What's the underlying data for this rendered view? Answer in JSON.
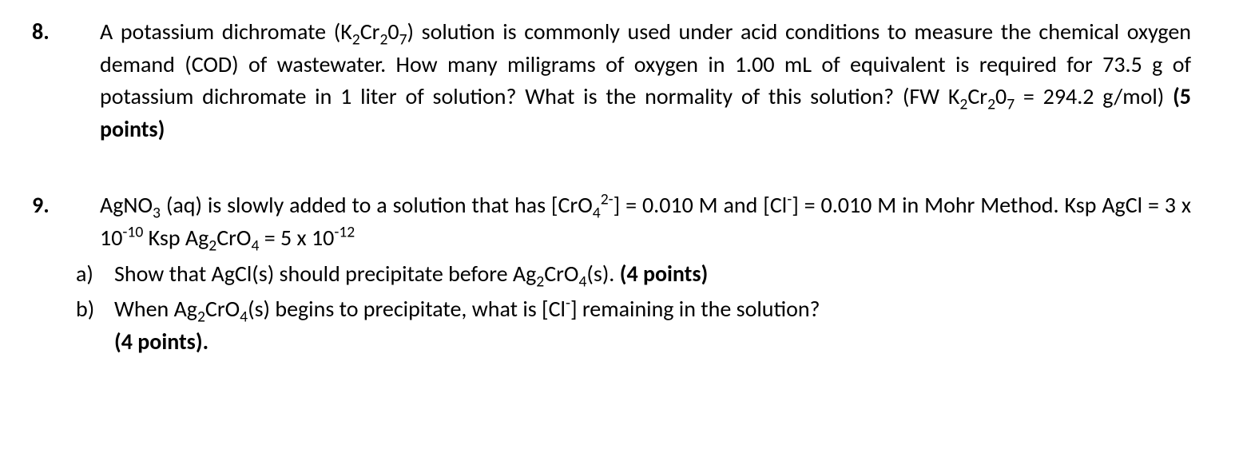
{
  "q8": {
    "number": "8.",
    "text_before_formula1": "A potassium dichromate (K",
    "formula1_sub1": "2",
    "formula1_mid1": "Cr",
    "formula1_sub2": "2",
    "formula1_mid2": "0",
    "formula1_sub3": "7",
    "text_after_formula1": ") solution is commonly used under acid conditions to measure the chemical oxygen demand (COD) of wastewater. How many miligrams of oxygen in 1.00 mL of equivalent is required for 73.5 g of potassium dichromate in 1 liter of solution? What is the normality of this solution? (FW K",
    "formula2_sub1": "2",
    "formula2_mid1": "Cr",
    "formula2_sub2": "2",
    "formula2_mid2": "0",
    "formula2_sub3": "7",
    "text_equals": " = 294.2 g/mol) ",
    "points": "(5 points)"
  },
  "q9": {
    "number": "9.",
    "intro_1": "AgNO",
    "intro_sub1": "3",
    "intro_2": " (aq) is slowly added to a solution that has [CrO",
    "intro_sub2": "4",
    "intro_sup2": "2-",
    "intro_3": "] = 0.010 M and [Cl",
    "intro_sup3": "-",
    "intro_4": "] = 0.010 M in Mohr Method. Ksp  AgCl = 3 x 10",
    "intro_sup4": "-10",
    "intro_5": " Ksp  Ag",
    "intro_sub5": "2",
    "intro_6": "CrO",
    "intro_sub6": "4",
    "intro_7": " = 5 x 10",
    "intro_sup7": "-12",
    "a": {
      "letter": "a)",
      "t1": "Show that AgCl(s) should precipitate before Ag",
      "sub1": "2",
      "t2": "CrO",
      "sub2": "4",
      "t3": "(s). ",
      "points": "(4 points)"
    },
    "b": {
      "letter": "b)",
      "t1": "When Ag",
      "sub1": "2",
      "t2": "CrO",
      "sub2": "4",
      "t3": "(s) begins to precipitate, what is [Cl",
      "sup1": "-",
      "t4": "] remaining in the solution?",
      "points": "(4 points)."
    }
  }
}
